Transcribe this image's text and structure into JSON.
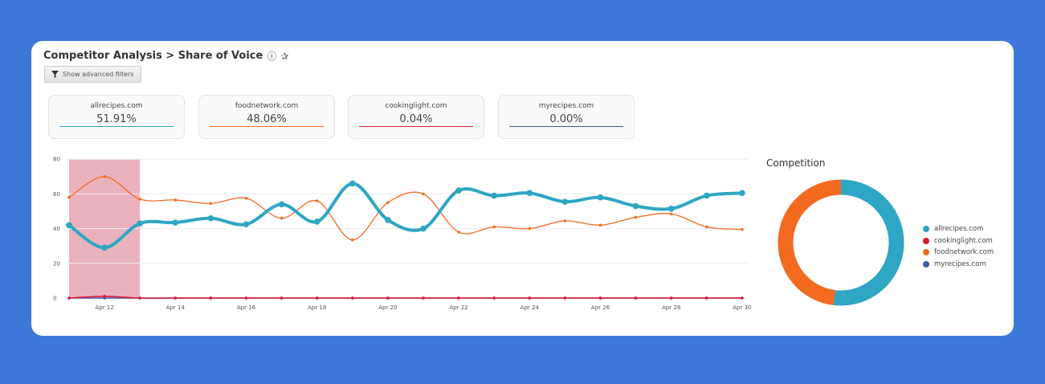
{
  "header": {
    "breadcrumb": "Competitor Analysis > Share of Voice",
    "info_icon": "info-icon",
    "pin_icon": "pin-icon",
    "filters_label": "Show advanced filters"
  },
  "kpis": [
    {
      "name": "allrecipes.com",
      "value": "51.91%",
      "color": "#2ea6c4"
    },
    {
      "name": "foodnetwork.com",
      "value": "48.06%",
      "color": "#f26b21"
    },
    {
      "name": "cookinglight.com",
      "value": "0.04%",
      "color": "#e0182d"
    },
    {
      "name": "myrecipes.com",
      "value": "0.00%",
      "color": "#3a5ba9"
    }
  ],
  "chart_data": [
    {
      "type": "line",
      "x": [
        "Apr 11",
        "Apr 12",
        "Apr 13",
        "Apr 14",
        "Apr 15",
        "Apr 16",
        "Apr 17",
        "Apr 18",
        "Apr 19",
        "Apr 20",
        "Apr 21",
        "Apr 22",
        "Apr 23",
        "Apr 24",
        "Apr 25",
        "Apr 26",
        "Apr 27",
        "Apr 28",
        "Apr 29",
        "Apr 30"
      ],
      "xticks": [
        "Apr 12",
        "Apr 14",
        "Apr 16",
        "Apr 18",
        "Apr 20",
        "Apr 22",
        "Apr 24",
        "Apr 26",
        "Apr 28",
        "Apr 30"
      ],
      "yticks": [
        "0",
        "20",
        "40",
        "60",
        "80"
      ],
      "ylim": [
        0,
        80
      ],
      "highlight_range": [
        "Apr 11",
        "Apr 13"
      ],
      "series": [
        {
          "name": "allrecipes.com",
          "color": "#2ea6c4",
          "values": [
            42,
            29,
            43,
            43.5,
            46,
            42.5,
            54,
            44,
            66,
            45,
            40,
            62,
            59,
            60.5,
            55.5,
            58,
            53,
            51.5,
            59,
            60.5
          ]
        },
        {
          "name": "foodnetwork.com",
          "color": "#f26b21",
          "values": [
            58,
            70,
            57,
            56.5,
            54.5,
            57.5,
            46,
            56,
            33.5,
            55,
            60,
            38,
            41,
            40,
            44.5,
            42,
            46.5,
            48.5,
            41,
            39.5
          ]
        },
        {
          "name": "cookinglight.com",
          "color": "#e0182d",
          "values": [
            0,
            1,
            0,
            0,
            0,
            0,
            0,
            0,
            0,
            0,
            0,
            0,
            0,
            0,
            0,
            0,
            0,
            0,
            0,
            0
          ]
        },
        {
          "name": "myrecipes.com",
          "color": "#3a5ba9",
          "values": [
            0,
            0,
            0,
            0,
            0,
            0,
            0,
            0,
            0,
            0,
            0,
            0,
            0,
            0,
            0,
            0,
            0,
            0,
            0,
            0
          ]
        }
      ]
    },
    {
      "type": "pie",
      "title": "Competition",
      "slices": [
        {
          "name": "allrecipes.com",
          "value": 51.91,
          "color": "#2ea6c4"
        },
        {
          "name": "cookinglight.com",
          "value": 0.04,
          "color": "#e0182d"
        },
        {
          "name": "foodnetwork.com",
          "value": 48.06,
          "color": "#f26b21"
        },
        {
          "name": "myrecipes.com",
          "value": 0.0,
          "color": "#3a5ba9"
        }
      ]
    }
  ]
}
